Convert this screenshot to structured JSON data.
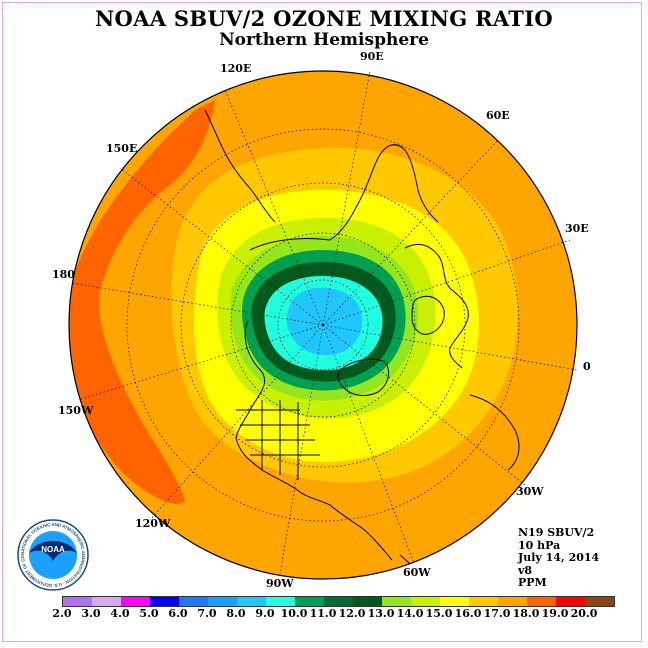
{
  "title": "NOAA SBUV/2 OZONE MIXING RATIO",
  "subtitle": "Northern Hemisphere",
  "longitude_labels": {
    "lon_90E": "90E",
    "lon_120E": "120E",
    "lon_60E": "60E",
    "lon_150E": "150E",
    "lon_30E": "30E",
    "lon_180": "180",
    "lon_0": "0",
    "lon_150W": "150W",
    "lon_30W": "30W",
    "lon_120W": "120W",
    "lon_60W": "60W",
    "lon_90W": "90W"
  },
  "info": {
    "satellite": "N19 SBUV/2",
    "pressure": "10 hPa",
    "date": "July 14, 2014",
    "version": "v8",
    "units": "PPM"
  },
  "logo": {
    "text": "NOAA",
    "ring_text": "NATIONAL OCEANIC AND ATMOSPHERIC ADMINISTRATION · U.S. DEPARTMENT OF COMMERCE"
  },
  "colorbar": {
    "ticks": [
      "2.0",
      "3.0",
      "4.0",
      "5.0",
      "6.0",
      "7.0",
      "8.0",
      "9.0",
      "10.0",
      "11.0",
      "12.0",
      "13.0",
      "14.0",
      "15.0",
      "16.0",
      "17.0",
      "18.0",
      "19.0",
      "20.0"
    ],
    "colors": [
      "#b070f0",
      "#d8a8f0",
      "#ff00ff",
      "#0000ff",
      "#1e78ff",
      "#1aa0ff",
      "#1ec8ff",
      "#20ffe0",
      "#00a050",
      "#006e2e",
      "#005a1e",
      "#96e61e",
      "#c8f000",
      "#ffff00",
      "#ffc800",
      "#ffa500",
      "#ff6400",
      "#ff0000",
      "#8b4513"
    ]
  },
  "map_colors": {
    "orange_red": "#ff6400",
    "orange": "#ffa500",
    "gold": "#ffc800",
    "yellow": "#ffff00",
    "yellow_green": "#c8f000",
    "light_green": "#96e61e",
    "green": "#00a050",
    "dark_green": "#005a1e",
    "turquoise": "#20ffe0",
    "cyan_blue": "#1ec8ff"
  }
}
